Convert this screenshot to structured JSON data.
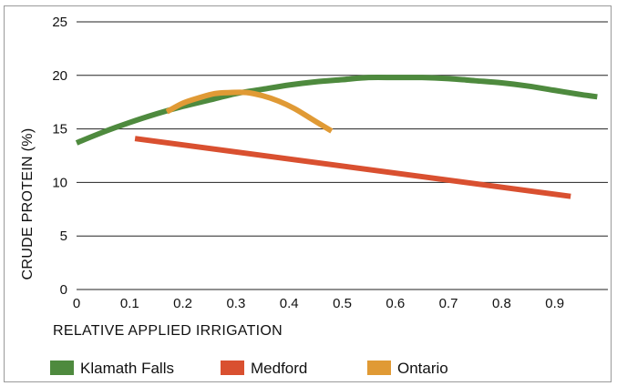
{
  "chart_data": {
    "type": "line",
    "title": "",
    "xlabel": "RELATIVE APPLIED IRRIGATION",
    "ylabel": "CRUDE PROTEIN (%)",
    "xlim": [
      0,
      1.0
    ],
    "ylim": [
      0,
      25
    ],
    "x_ticks": [
      0,
      0.1,
      0.2,
      0.3,
      0.4,
      0.5,
      0.6,
      0.7,
      0.8,
      0.9
    ],
    "x_tick_labels": [
      "0",
      "0.1",
      "0.2",
      "0.3",
      "0.4",
      "0.5",
      "0.6",
      "0.7",
      "0.8",
      "0.9"
    ],
    "y_ticks": [
      0,
      5,
      10,
      15,
      20,
      25
    ],
    "y_tick_labels": [
      "0",
      "5",
      "10",
      "15",
      "20",
      "25"
    ],
    "grid": "horizontal",
    "legend_position": "bottom",
    "series": [
      {
        "name": "Klamath Falls",
        "color": "#4e8a3e",
        "x": [
          0,
          0.05,
          0.1,
          0.15,
          0.2,
          0.25,
          0.3,
          0.35,
          0.4,
          0.45,
          0.5,
          0.55,
          0.6,
          0.65,
          0.7,
          0.75,
          0.8,
          0.85,
          0.9,
          0.95,
          0.98
        ],
        "y": [
          13.7,
          14.7,
          15.6,
          16.4,
          17.1,
          17.7,
          18.3,
          18.7,
          19.1,
          19.4,
          19.6,
          19.8,
          19.8,
          19.8,
          19.7,
          19.5,
          19.3,
          19.0,
          18.6,
          18.2,
          18.0
        ]
      },
      {
        "name": "Medford",
        "color": "#d95030",
        "x": [
          0.11,
          0.93
        ],
        "y": [
          14.1,
          8.7
        ]
      },
      {
        "name": "Ontario",
        "color": "#e09a35",
        "x": [
          0.17,
          0.2,
          0.23,
          0.26,
          0.29,
          0.32,
          0.35,
          0.38,
          0.41,
          0.44,
          0.47,
          0.48
        ],
        "y": [
          16.6,
          17.4,
          17.9,
          18.3,
          18.4,
          18.4,
          18.1,
          17.6,
          16.9,
          16.0,
          15.1,
          14.8
        ]
      }
    ]
  }
}
